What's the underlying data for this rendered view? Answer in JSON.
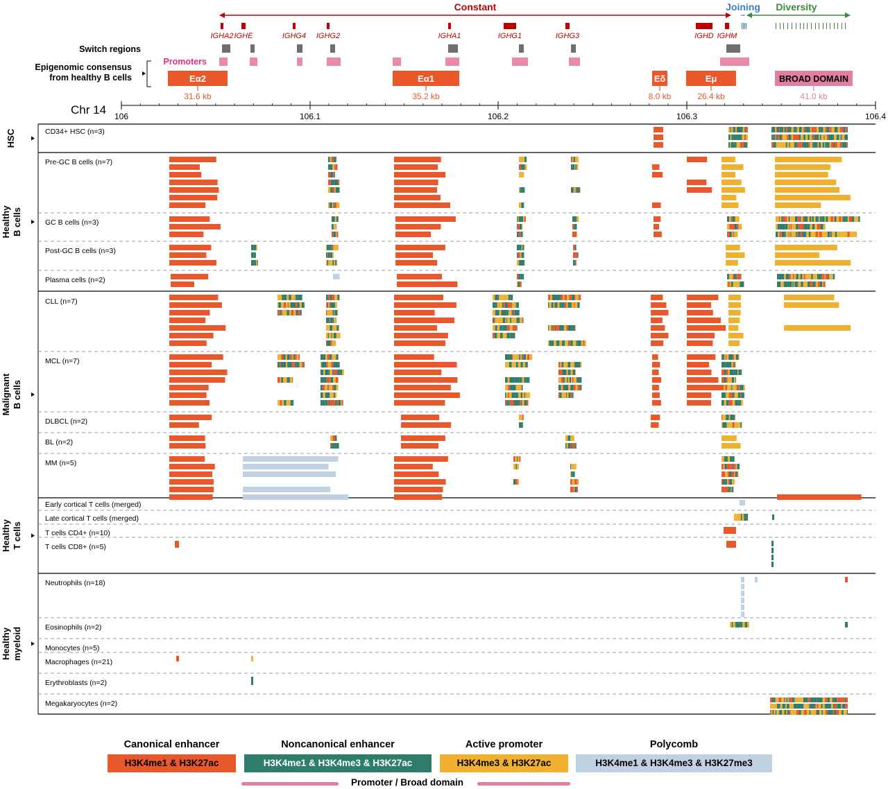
{
  "header": {
    "constant_label": "Constant",
    "joining_label": "Joining",
    "diversity_label": "Diversity",
    "genes": [
      "IGHA2",
      "IGHE",
      "IGHG4",
      "IGHG2",
      "IGHA1",
      "IGHG1",
      "IGHG3",
      "IGHD",
      "IGHM"
    ],
    "switch_regions_label": "Switch regions",
    "promoters_label": "Promoters",
    "consensus_label_1": "Epigenomic consensus",
    "consensus_label_2": "from healthy B cells",
    "domains": [
      {
        "name": "Eα2",
        "size": "31.6 kb"
      },
      {
        "name": "Eα1",
        "size": "35.2 kb"
      },
      {
        "name": "Eδ",
        "size": "8.0 kb"
      },
      {
        "name": "Eμ",
        "size": "26.4 kb"
      },
      {
        "name": "BROAD DOMAIN",
        "size": "41.0 kb"
      }
    ]
  },
  "axis": {
    "chr_label": "Chr 14",
    "ticks": [
      "106",
      "106.1",
      "106.2",
      "106.3",
      "106.4"
    ]
  },
  "groups": [
    {
      "title": "HSC",
      "title2": "",
      "rows": [
        "CD34+ HSC (n=3)"
      ]
    },
    {
      "title": "Healthy",
      "title2": "B cells",
      "rows": [
        "Pre-GC B cells (n=7)",
        "GC B cells (n=3)",
        "Post-GC B cells (n=3)",
        "Plasma cells (n=2)"
      ]
    },
    {
      "title": "Malignant",
      "title2": "B cells",
      "rows": [
        "CLL (n=7)",
        "MCL (n=7)",
        "DLBCL (n=2)",
        "BL (n=2)",
        "MM (n=5)"
      ]
    },
    {
      "title": "Healthy",
      "title2": "T cells",
      "rows": [
        "Early cortical T cells (merged)",
        "Late cortical T cells (merged)",
        "T cells CD4+ (n=10)",
        "T cells CD8+ (n=5)"
      ]
    },
    {
      "title": "Healthy",
      "title2": "myeloid",
      "rows": [
        "Neutrophils (n=18)",
        "Eosinophils (n=2)",
        "Monocytes (n=5)",
        "Macrophages (n=21)",
        "Erythroblasts (n=2)",
        "Megakaryocytes (n=2)"
      ]
    }
  ],
  "legend": {
    "items": [
      {
        "title": "Canonical enhancer",
        "label": "H3K4me1 & H3K27ac",
        "color": "#e8582a"
      },
      {
        "title": "Noncanonical enhancer",
        "label": "H3K4me1 & H3K4me3 & H3K27ac",
        "color": "#2e7d6b"
      },
      {
        "title": "Active promoter",
        "label": "H3K4me3 & H3K27ac",
        "color": "#f0b030"
      },
      {
        "title": "Polycomb",
        "label": "H3K4me1 & H3K4me3 & H3K27me3",
        "color": "#c0d2e2"
      }
    ],
    "promoter_broad_label": "Promoter / Broad domain",
    "promoter_color": "#e07fa0"
  },
  "colors": {
    "constant": "#c00000",
    "joining": "#3a7fc0",
    "diversity": "#3a8a3a",
    "switch": "#707070",
    "promoter": "#e88aa8",
    "enhancer": "#e8582a",
    "broad": "#e07fa0"
  }
}
